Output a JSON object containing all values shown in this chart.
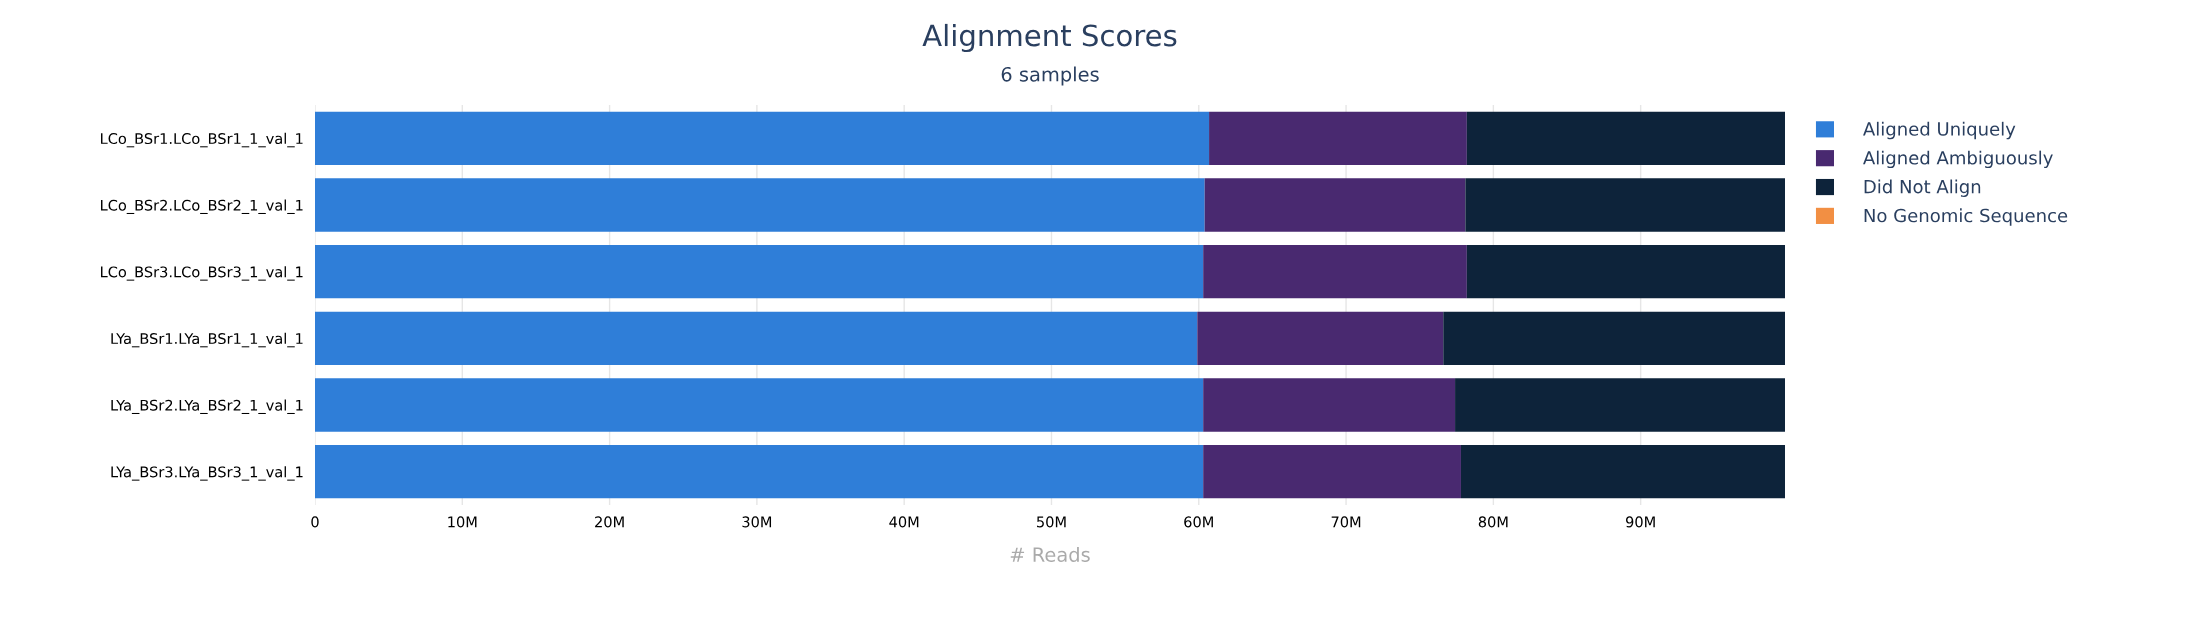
{
  "chart_data": {
    "type": "bar",
    "orientation": "horizontal",
    "stacked": true,
    "title": "Alignment Scores",
    "subtitle": "6 samples",
    "xlabel": "# Reads",
    "categories": [
      "LCo_BSr1.LCo_BSr1_1_val_1",
      "LCo_BSr2.LCo_BSr2_1_val_1",
      "LCo_BSr3.LCo_BSr3_1_val_1",
      "LYa_BSr1.LYa_BSr1_1_val_1",
      "LYa_BSr2.LYa_BSr2_1_val_1",
      "LYa_BSr3.LYa_BSr3_1_val_1"
    ],
    "series": [
      {
        "name": "Aligned Uniquely",
        "color": "#2f7ed8",
        "values": [
          60.7,
          60.4,
          60.3,
          59.9,
          60.3,
          60.3
        ]
      },
      {
        "name": "Aligned Ambiguously",
        "color": "#492970",
        "values": [
          17.5,
          17.7,
          17.9,
          16.7,
          17.1,
          17.5
        ]
      },
      {
        "name": "Did Not Align",
        "color": "#0d233a",
        "values": [
          21.6,
          21.7,
          21.6,
          23.2,
          22.4,
          22.0
        ]
      },
      {
        "name": "No Genomic Sequence",
        "color": "#f28f43",
        "values": [
          0,
          0,
          0,
          0,
          0,
          0
        ]
      }
    ],
    "xlim": [
      0,
      99.8
    ],
    "xticks": [
      0,
      {
        "value": 10,
        "label": "10M"
      },
      {
        "value": 20,
        "label": "20M"
      },
      {
        "value": 30,
        "label": "30M"
      },
      {
        "value": 40,
        "label": "40M"
      },
      {
        "value": 50,
        "label": "50M"
      },
      {
        "value": 60,
        "label": "60M"
      },
      {
        "value": 70,
        "label": "70M"
      },
      {
        "value": 80,
        "label": "80M"
      },
      {
        "value": 90,
        "label": "90M"
      }
    ],
    "grid": "x",
    "legend": "right"
  }
}
